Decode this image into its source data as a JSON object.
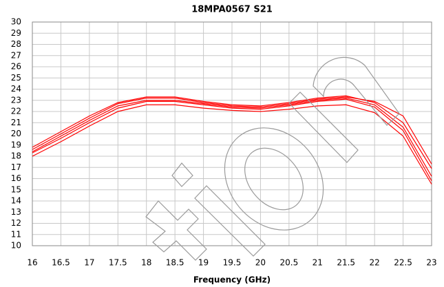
{
  "chart_data": {
    "type": "line",
    "title": "18MPA0567 S21",
    "x_label": "Frequency (GHz)",
    "x": [
      16,
      16.5,
      17,
      17.5,
      18,
      18.5,
      19,
      19.5,
      20,
      20.5,
      21,
      21.5,
      22,
      22.5,
      23
    ],
    "series": [
      {
        "color": "#ff0000",
        "values": [
          18.8,
          20.2,
          21.6,
          22.8,
          23.3,
          23.3,
          22.9,
          22.6,
          22.5,
          22.8,
          23.2,
          23.4,
          22.8,
          21.0,
          16.9
        ]
      },
      {
        "color": "#ff0000",
        "values": [
          18.6,
          20.0,
          21.4,
          22.7,
          23.2,
          23.2,
          22.8,
          22.5,
          22.4,
          22.7,
          23.1,
          23.3,
          22.9,
          21.6,
          17.3
        ]
      },
      {
        "color": "#ff0000",
        "values": [
          18.4,
          19.8,
          21.2,
          22.5,
          23.0,
          23.0,
          22.7,
          22.4,
          22.3,
          22.6,
          23.0,
          23.2,
          22.6,
          20.6,
          16.2
        ]
      },
      {
        "color": "#ff0000",
        "values": [
          18.3,
          19.6,
          21.0,
          22.3,
          22.9,
          22.9,
          22.6,
          22.3,
          22.2,
          22.5,
          22.9,
          23.1,
          22.4,
          20.3,
          15.8
        ]
      },
      {
        "color": "#ff0000",
        "values": [
          18.0,
          19.3,
          20.7,
          22.0,
          22.6,
          22.6,
          22.3,
          22.1,
          22.0,
          22.2,
          22.5,
          22.6,
          21.9,
          19.8,
          15.5
        ]
      }
    ],
    "xlim": [
      16,
      23
    ],
    "xticks": [
      16,
      16.5,
      17,
      17.5,
      18,
      18.5,
      19,
      19.5,
      20,
      20.5,
      21,
      21.5,
      22,
      22.5,
      23
    ],
    "ylim": [
      10,
      30
    ],
    "yticks": [
      10,
      11,
      12,
      13,
      14,
      15,
      16,
      17,
      18,
      19,
      20,
      21,
      22,
      23,
      24,
      25,
      26,
      27,
      28,
      29,
      30
    ],
    "grid": true
  }
}
